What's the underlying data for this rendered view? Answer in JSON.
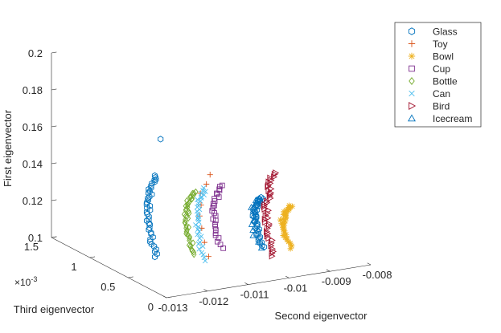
{
  "chart_data": {
    "type": "scatter",
    "projection": "3d",
    "xlabel": "Second eigenvector",
    "ylabel": "Third eigenvector",
    "zlabel": "First eigenvector",
    "x_ticks": [
      "-0.013",
      "-0.012",
      "-0.011",
      "-0.01",
      "-0.009",
      "-0.008"
    ],
    "y_ticks": [
      "0",
      "0.5",
      "1",
      "1.5"
    ],
    "y_multiplier": "×10-3",
    "z_ticks": [
      "0.1",
      "0.12",
      "0.14",
      "0.16",
      "0.18",
      "0.2"
    ],
    "xlim": [
      -0.013,
      -0.008
    ],
    "ylim": [
      0,
      0.0015
    ],
    "zlim": [
      0.1,
      0.2
    ],
    "grid": false,
    "legend_position": "top-right",
    "series": [
      {
        "name": "Glass",
        "marker": "hexagon",
        "color": "#0072BD",
        "clusters": [
          {
            "x_center": -0.01315,
            "x_spread": 5e-05,
            "z_min": 0.122,
            "z_max": 0.166,
            "n": 40
          },
          {
            "x_center": -0.01055,
            "x_spread": 6e-05,
            "z_min": 0.118,
            "z_max": 0.145,
            "n": 40
          }
        ],
        "outliers": [
          [
            -0.01305,
            5e-05,
            0.185
          ]
        ]
      },
      {
        "name": "Toy",
        "marker": "plus",
        "color": "#D95319",
        "clusters": [
          {
            "x_center": -0.01188,
            "x_spread": 3e-05,
            "z_min": 0.118,
            "z_max": 0.162,
            "n": 8
          }
        ]
      },
      {
        "name": "Bowl",
        "marker": "asterisk",
        "color": "#EDB120",
        "clusters": [
          {
            "x_center": -0.00985,
            "x_spread": 5e-05,
            "z_min": 0.115,
            "z_max": 0.138,
            "n": 38
          }
        ]
      },
      {
        "name": "Cup",
        "marker": "square",
        "color": "#7E2F8E",
        "clusters": [
          {
            "x_center": -0.01155,
            "x_spread": 5e-05,
            "z_min": 0.121,
            "z_max": 0.155,
            "n": 26
          }
        ]
      },
      {
        "name": "Bottle",
        "marker": "diamond",
        "color": "#77AC30",
        "clusters": [
          {
            "x_center": -0.01222,
            "x_spread": 5e-05,
            "z_min": 0.12,
            "z_max": 0.154,
            "n": 42
          }
        ]
      },
      {
        "name": "Can",
        "marker": "cross",
        "color": "#4DBEEE",
        "clusters": [
          {
            "x_center": -0.01195,
            "x_spread": 5e-05,
            "z_min": 0.116,
            "z_max": 0.155,
            "n": 34
          }
        ]
      },
      {
        "name": "Bird",
        "marker": "triangle-right",
        "color": "#A2142F",
        "clusters": [
          {
            "x_center": -0.01025,
            "x_spread": 6e-05,
            "z_min": 0.112,
            "z_max": 0.157,
            "n": 40
          }
        ]
      },
      {
        "name": "Icecream",
        "marker": "triangle-up",
        "color": "#0072BD",
        "clusters": [
          {
            "x_center": -0.01062,
            "x_spread": 4e-05,
            "z_min": 0.118,
            "z_max": 0.145,
            "n": 12
          }
        ]
      }
    ]
  }
}
